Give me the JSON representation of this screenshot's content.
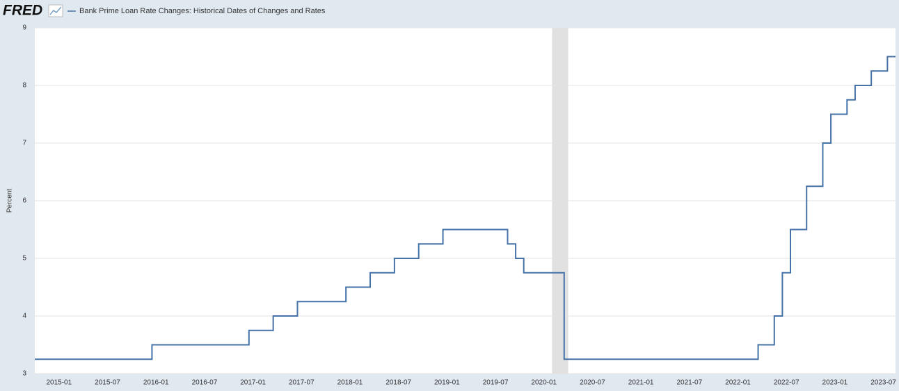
{
  "logo": "FRED",
  "chart_data": {
    "type": "step",
    "title": "Bank Prime Loan Rate Changes: Historical Dates of Changes and Rates",
    "y_label": "Percent",
    "x": [
      "2014-10",
      "2015-12",
      "2016-12",
      "2017-03",
      "2017-06",
      "2017-12",
      "2018-03",
      "2018-06",
      "2018-09",
      "2018-12",
      "2019-08",
      "2019-09",
      "2019-10",
      "2020-03",
      "2020-03",
      "2022-03",
      "2022-05",
      "2022-06",
      "2022-07",
      "2022-09",
      "2022-11",
      "2022-12",
      "2023-02",
      "2023-03",
      "2023-05",
      "2023-07"
    ],
    "series": [
      {
        "name": "Bank Prime Loan Rate Changes: Historical Dates of Changes and Rates",
        "color": "#4572a7",
        "values": [
          3.25,
          3.5,
          3.75,
          4,
          4.25,
          4.5,
          4.75,
          5,
          5.25,
          5.5,
          5.25,
          5,
          4.75,
          4.25,
          3.25,
          3.5,
          4,
          4.75,
          5.5,
          6.25,
          7,
          7.5,
          7.75,
          8,
          8.25,
          8.5
        ]
      }
    ],
    "xlim": [
      "2014-10",
      "2023-08"
    ],
    "xticks": [
      "2015-01",
      "2015-07",
      "2016-01",
      "2016-07",
      "2017-01",
      "2017-07",
      "2018-01",
      "2018-07",
      "2019-01",
      "2019-07",
      "2020-01",
      "2020-07",
      "2021-01",
      "2021-07",
      "2022-01",
      "2022-07",
      "2023-01",
      "2023-07"
    ],
    "ylim": [
      3,
      9
    ],
    "yticks": [
      3,
      4,
      5,
      6,
      7,
      8,
      9
    ],
    "grid": true,
    "recessions": [
      [
        "2020-02",
        "2020-04"
      ]
    ]
  }
}
